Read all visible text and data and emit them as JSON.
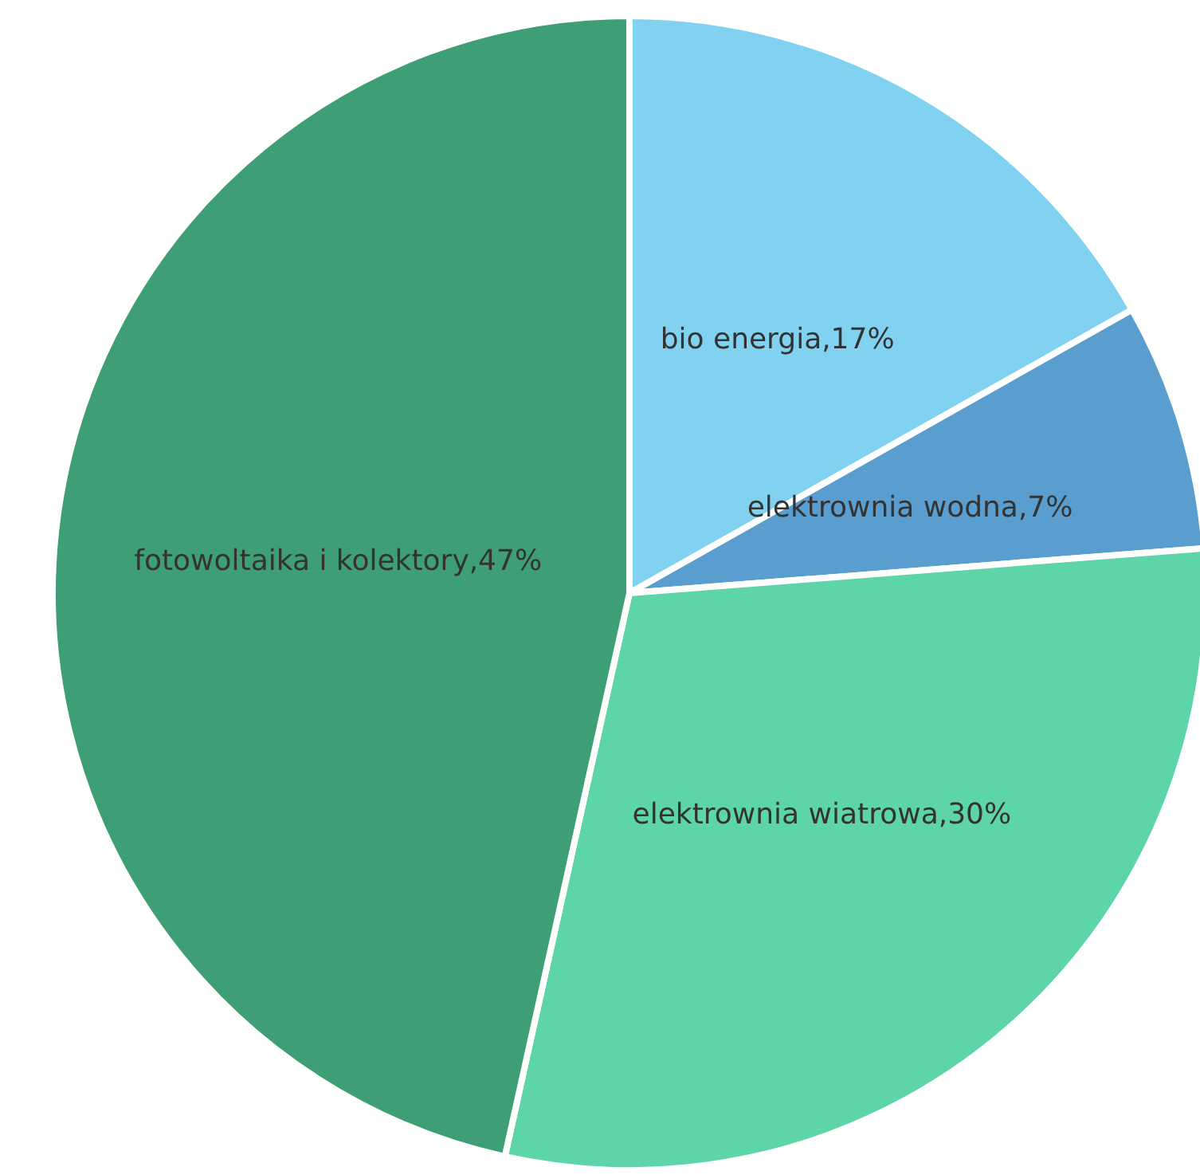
{
  "chart_data": {
    "type": "pie",
    "categories": [
      "bio energia",
      "elektrownia wodna",
      "elektrownia wiatrowa",
      "fotowoltaika i kolektory"
    ],
    "values": [
      17,
      7,
      30,
      47
    ],
    "value_labels": [
      ",17%",
      ",7%",
      ",30%",
      ",47%"
    ],
    "colors": [
      "#80d2f0",
      "#5a9ecf",
      "#5ed5a8",
      "#3f9f74"
    ],
    "legend": false
  }
}
